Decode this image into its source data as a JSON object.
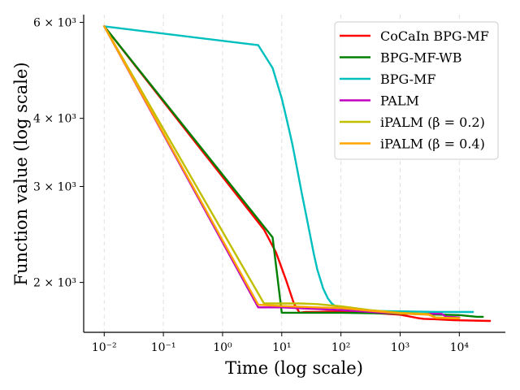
{
  "chart_data": {
    "type": "line",
    "title": "",
    "xlabel": "Time (log scale)",
    "ylabel": "Function value (log scale)",
    "x_scale": "log",
    "y_scale": "log",
    "xlim": [
      0.0045,
      60000
    ],
    "ylim": [
      1620,
      6200
    ],
    "x_ticks": [
      {
        "value": 0.01,
        "label": "10⁻²"
      },
      {
        "value": 0.1,
        "label": "10⁻¹"
      },
      {
        "value": 1,
        "label": "10⁰"
      },
      {
        "value": 10,
        "label": "10¹"
      },
      {
        "value": 100,
        "label": "10²"
      },
      {
        "value": 1000,
        "label": "10³"
      },
      {
        "value": 10000,
        "label": "10⁴"
      }
    ],
    "y_ticks": [
      {
        "value": 2000,
        "label": "2 × 10³"
      },
      {
        "value": 3000,
        "label": "3 × 10³"
      },
      {
        "value": 4000,
        "label": "4 × 10³"
      },
      {
        "value": 6000,
        "label": "6 × 10³"
      }
    ],
    "grid": {
      "x": true,
      "y": false,
      "style": "dashed"
    },
    "legend_position": "top-right",
    "series": [
      {
        "name": "CoCaIn BPG-MF",
        "color": "#ff0000",
        "x": [
          0.01,
          5,
          8,
          12,
          16,
          20,
          25,
          40,
          60,
          100,
          300,
          1000,
          2000,
          2500,
          4000,
          8000,
          33000
        ],
        "y": [
          5900,
          2500,
          2270,
          2010,
          1830,
          1760,
          1765,
          1765,
          1768,
          1768,
          1760,
          1745,
          1720,
          1715,
          1712,
          1705,
          1700
        ]
      },
      {
        "name": "BPG-MF-WB",
        "color": "#008000",
        "x": [
          0.01,
          7,
          10,
          15,
          30,
          100,
          500,
          2000,
          5000,
          10000,
          20000,
          25000
        ],
        "y": [
          5900,
          2420,
          1760,
          1760,
          1760,
          1760,
          1755,
          1750,
          1745,
          1742,
          1730,
          1730
        ]
      },
      {
        "name": "BPG-MF",
        "color": "#00bfbf",
        "x": [
          0.01,
          4,
          7,
          10,
          12,
          15,
          18,
          22,
          26,
          30,
          35,
          40,
          50,
          60,
          70,
          80,
          100,
          200,
          1000,
          5000,
          17000
        ],
        "y": [
          5900,
          5450,
          4950,
          4350,
          4000,
          3600,
          3250,
          2900,
          2650,
          2450,
          2250,
          2110,
          1950,
          1870,
          1830,
          1810,
          1790,
          1775,
          1770,
          1765,
          1765
        ]
      },
      {
        "name": "PALM",
        "color": "#bf00bf",
        "x": [
          0.01,
          4,
          10,
          30,
          100,
          500,
          1500,
          3000,
          5000,
          6000,
          7000,
          10000
        ],
        "y": [
          5900,
          1800,
          1800,
          1790,
          1780,
          1760,
          1752,
          1752,
          1752,
          1730,
          1730,
          1725
        ]
      },
      {
        "name": "iPALM (β = 0.2)",
        "color": "#bfbf00",
        "x": [
          0.01,
          5,
          10,
          20,
          40,
          100,
          300,
          1000,
          3000,
          4000,
          6000,
          10000
        ],
        "y": [
          5900,
          1830,
          1830,
          1830,
          1825,
          1808,
          1780,
          1760,
          1750,
          1725,
          1722,
          1720
        ]
      },
      {
        "name": "iPALM (β = 0.4)",
        "color": "#ffa500",
        "x": [
          0.01,
          4,
          10,
          20,
          40,
          100,
          300,
          1000,
          3000,
          4000,
          6000,
          10000
        ],
        "y": [
          5900,
          1820,
          1810,
          1805,
          1800,
          1795,
          1775,
          1755,
          1745,
          1722,
          1720,
          1718
        ]
      }
    ]
  }
}
